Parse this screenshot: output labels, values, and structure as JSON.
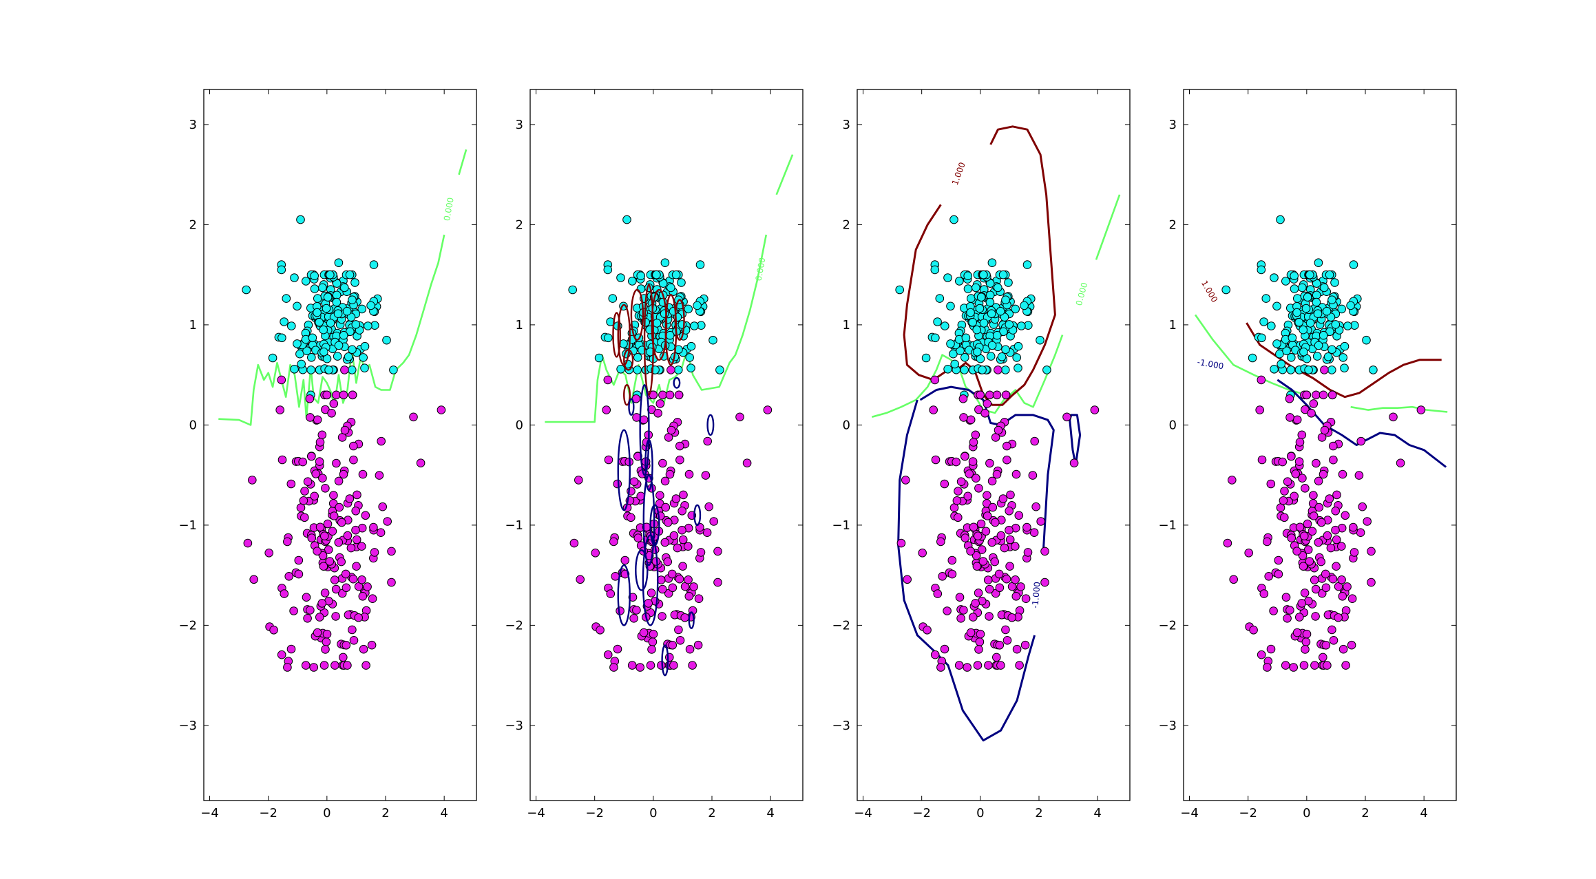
{
  "chart_data": {
    "type": "scatter",
    "panel_count": 4,
    "xlim": [
      -4.2,
      5.1
    ],
    "ylim": [
      -3.75,
      3.35
    ],
    "xticks": [
      -4,
      -2,
      0,
      2,
      4
    ],
    "yticks": [
      -3,
      -2,
      -1,
      0,
      1,
      2,
      3
    ],
    "xtick_labels": [
      "−4",
      "−2",
      "0",
      "2",
      "4"
    ],
    "ytick_labels": [
      "−3",
      "−2",
      "−1",
      "0",
      "1",
      "2",
      "3"
    ],
    "grid": false,
    "colors": {
      "class_pos": "#19f2f2",
      "class_neg": "#e619e6",
      "contour_pos": "#800000",
      "contour_zero": "#66ff66",
      "contour_neg": "#000080",
      "marker_edge": "#000000"
    },
    "point_counts": {
      "class_pos": 200,
      "class_neg": 200
    },
    "class_pos_distribution": {
      "center": [
        0.1,
        1.0
      ],
      "spread": [
        0.75,
        0.3
      ]
    },
    "class_neg_distribution": {
      "center": [
        0.1,
        -1.1
      ],
      "spread": [
        0.9,
        0.75
      ]
    },
    "class_pos_points": [
      [
        -0.9,
        2.05
      ],
      [
        -2.75,
        1.35
      ],
      [
        -1.55,
        1.6
      ],
      [
        -1.55,
        1.55
      ],
      [
        1.6,
        1.6
      ],
      [
        0.4,
        1.62
      ],
      [
        -0.55,
        0.3
      ]
    ],
    "class_neg_points": [
      [
        3.2,
        -0.38
      ],
      [
        3.9,
        0.15
      ],
      [
        2.95,
        0.08
      ],
      [
        -2.55,
        -0.55
      ],
      [
        -2.7,
        -1.18
      ],
      [
        -1.35,
        -2.42
      ],
      [
        0.55,
        -2.32
      ],
      [
        -0.45,
        -2.42
      ],
      [
        -1.55,
        0.45
      ],
      [
        -1.6,
        0.15
      ],
      [
        0.6,
        0.55
      ]
    ],
    "panels": [
      {
        "contour_levels": [
          0.0
        ],
        "contour_labels": [
          {
            "text": "0.000",
            "x": 4.25,
            "y": 2.15,
            "rotation": -80,
            "color": "contour_zero"
          }
        ],
        "zero_contour": [
          [
            -3.7,
            0.06
          ],
          [
            -3.0,
            0.05
          ],
          [
            -2.6,
            0.0
          ],
          [
            -2.5,
            0.35
          ],
          [
            -2.35,
            0.6
          ],
          [
            -2.15,
            0.45
          ],
          [
            -2.0,
            0.52
          ],
          [
            -1.85,
            0.38
          ],
          [
            -1.7,
            0.62
          ],
          [
            -1.55,
            0.45
          ],
          [
            -1.4,
            0.28
          ],
          [
            -1.25,
            0.6
          ],
          [
            -1.1,
            0.5
          ],
          [
            -0.95,
            0.18
          ],
          [
            -0.8,
            0.45
          ],
          [
            -0.7,
            0.07
          ],
          [
            -0.55,
            0.58
          ],
          [
            -0.45,
            0.27
          ],
          [
            -0.3,
            0.22
          ],
          [
            -0.15,
            0.48
          ],
          [
            0.0,
            0.42
          ],
          [
            0.15,
            0.32
          ],
          [
            0.25,
            0.18
          ],
          [
            0.4,
            0.5
          ],
          [
            0.55,
            0.22
          ],
          [
            0.7,
            0.35
          ],
          [
            0.85,
            0.75
          ],
          [
            1.0,
            0.42
          ],
          [
            1.15,
            0.68
          ],
          [
            1.3,
            0.55
          ],
          [
            1.45,
            0.6
          ],
          [
            1.65,
            0.38
          ],
          [
            1.85,
            0.35
          ],
          [
            2.15,
            0.35
          ],
          [
            2.35,
            0.55
          ],
          [
            2.6,
            0.62
          ],
          [
            2.8,
            0.7
          ],
          [
            3.05,
            0.9
          ],
          [
            3.3,
            1.15
          ],
          [
            3.55,
            1.4
          ],
          [
            3.8,
            1.62
          ],
          [
            4.0,
            1.9
          ]
        ],
        "zero_contour_upper": [
          [
            4.5,
            2.5
          ],
          [
            4.75,
            2.75
          ]
        ]
      },
      {
        "contour_levels": [
          -1.0,
          0.0,
          1.0
        ],
        "contour_labels": [
          {
            "text": "0.000",
            "x": 3.75,
            "y": 1.55,
            "rotation": -80,
            "color": "contour_zero"
          }
        ],
        "zero_contour": [
          [
            -3.7,
            0.03
          ],
          [
            -2.0,
            0.03
          ],
          [
            -1.9,
            0.45
          ],
          [
            -1.75,
            0.7
          ],
          [
            -1.6,
            0.55
          ],
          [
            -1.35,
            0.4
          ],
          [
            -1.15,
            0.55
          ],
          [
            -0.95,
            0.5
          ],
          [
            -0.75,
            0.22
          ],
          [
            -0.5,
            0.6
          ],
          [
            -0.25,
            0.3
          ],
          [
            0.0,
            0.22
          ],
          [
            0.2,
            0.4
          ],
          [
            0.35,
            0.2
          ],
          [
            0.55,
            0.45
          ],
          [
            0.75,
            0.48
          ],
          [
            0.95,
            0.55
          ],
          [
            1.15,
            0.75
          ],
          [
            1.35,
            0.5
          ],
          [
            1.65,
            0.35
          ],
          [
            2.25,
            0.38
          ],
          [
            2.6,
            0.62
          ],
          [
            2.8,
            0.7
          ],
          [
            3.05,
            0.9
          ],
          [
            3.3,
            1.15
          ],
          [
            3.55,
            1.45
          ],
          [
            3.85,
            1.9
          ]
        ],
        "zero_contour_upper": [
          [
            4.2,
            2.3
          ],
          [
            4.75,
            2.7
          ]
        ],
        "pos_ellipses": [
          [
            -1.0,
            0.9,
            0.2,
            0.3
          ],
          [
            -0.55,
            1.1,
            0.2,
            0.25
          ],
          [
            -0.15,
            0.85,
            0.15,
            0.55
          ],
          [
            0.2,
            1.0,
            0.25,
            0.35
          ],
          [
            0.6,
            0.95,
            0.18,
            0.35
          ],
          [
            0.9,
            1.05,
            0.15,
            0.2
          ],
          [
            -0.85,
            0.65,
            0.15,
            0.1
          ],
          [
            -0.9,
            0.3,
            0.1,
            0.1
          ],
          [
            -1.25,
            0.9,
            0.12,
            0.22
          ]
        ],
        "neg_ellipses": [
          [
            -0.3,
            -0.05,
            0.15,
            0.45
          ],
          [
            -1.0,
            -0.45,
            0.2,
            0.4
          ],
          [
            -0.15,
            -0.4,
            0.12,
            0.25
          ],
          [
            -0.15,
            -0.95,
            0.18,
            0.45
          ],
          [
            0.05,
            -1.0,
            0.15,
            0.2
          ],
          [
            1.95,
            0.0,
            0.1,
            0.1
          ],
          [
            1.5,
            -0.9,
            0.1,
            0.1
          ],
          [
            -0.4,
            -1.45,
            0.2,
            0.2
          ],
          [
            -0.1,
            -1.55,
            0.25,
            0.45
          ],
          [
            -1.0,
            -1.7,
            0.2,
            0.3
          ],
          [
            0.4,
            -2.35,
            0.1,
            0.15
          ],
          [
            1.3,
            -1.95,
            0.08,
            0.08
          ],
          [
            -0.75,
            0.18,
            0.08,
            0.08
          ],
          [
            0.8,
            0.42,
            0.1,
            0.05
          ]
        ]
      },
      {
        "contour_levels": [
          -1.0,
          0.0,
          1.0
        ],
        "contour_labels": [
          {
            "text": "1.000",
            "x": -0.65,
            "y": 2.5,
            "rotation": -70,
            "color": "contour_pos"
          },
          {
            "text": "0.000",
            "x": 3.55,
            "y": 1.3,
            "rotation": -75,
            "color": "contour_zero"
          },
          {
            "text": "-1.000",
            "x": 2.0,
            "y": -1.7,
            "rotation": -85,
            "color": "contour_neg"
          }
        ],
        "pos_contour": [
          [
            -1.35,
            2.2
          ],
          [
            -1.8,
            2.0
          ],
          [
            -2.2,
            1.75
          ],
          [
            -2.5,
            1.2
          ],
          [
            -2.6,
            0.9
          ],
          [
            -2.5,
            0.6
          ],
          [
            -2.1,
            0.5
          ],
          [
            -1.6,
            0.45
          ],
          [
            -1.1,
            0.55
          ],
          [
            -0.8,
            0.55
          ],
          [
            -0.5,
            0.62
          ],
          [
            -0.2,
            0.55
          ],
          [
            0.1,
            0.3
          ],
          [
            0.4,
            0.2
          ],
          [
            0.75,
            0.2
          ],
          [
            1.1,
            0.3
          ],
          [
            1.5,
            0.4
          ],
          [
            1.8,
            0.55
          ],
          [
            2.2,
            0.8
          ],
          [
            2.55,
            1.1
          ],
          [
            2.4,
            1.7
          ],
          [
            2.25,
            2.3
          ],
          [
            2.05,
            2.7
          ],
          [
            1.6,
            2.95
          ],
          [
            1.1,
            2.98
          ],
          [
            0.6,
            2.95
          ],
          [
            0.35,
            2.8
          ]
        ],
        "zero_contour": [
          [
            -3.7,
            0.08
          ],
          [
            -3.2,
            0.12
          ],
          [
            -2.7,
            0.18
          ],
          [
            -2.2,
            0.25
          ],
          [
            -1.8,
            0.38
          ],
          [
            -1.5,
            0.55
          ],
          [
            -1.3,
            0.7
          ],
          [
            -1.0,
            0.65
          ],
          [
            -0.7,
            0.55
          ],
          [
            -0.5,
            0.38
          ],
          [
            -0.2,
            0.3
          ],
          [
            0.1,
            0.15
          ],
          [
            0.5,
            0.12
          ],
          [
            0.8,
            0.25
          ],
          [
            1.2,
            0.35
          ],
          [
            1.5,
            0.22
          ],
          [
            1.8,
            0.18
          ],
          [
            2.2,
            0.45
          ],
          [
            2.55,
            0.7
          ],
          [
            2.8,
            0.9
          ]
        ],
        "zero_contour_upper": [
          [
            3.95,
            1.65
          ],
          [
            4.75,
            2.3
          ]
        ],
        "neg_contour": [
          [
            -2.15,
            0.25
          ],
          [
            -2.5,
            -0.1
          ],
          [
            -2.75,
            -0.55
          ],
          [
            -2.8,
            -1.2
          ],
          [
            -2.6,
            -1.75
          ],
          [
            -2.15,
            -2.1
          ],
          [
            -1.6,
            -2.25
          ],
          [
            -1.1,
            -2.4
          ],
          [
            -0.6,
            -2.85
          ],
          [
            0.1,
            -3.15
          ],
          [
            0.7,
            -3.05
          ],
          [
            1.25,
            -2.75
          ],
          [
            1.65,
            -2.3
          ],
          [
            1.85,
            -2.1
          ]
        ],
        "neg_contour_b": [
          [
            2.15,
            -1.25
          ],
          [
            2.3,
            -0.5
          ],
          [
            2.5,
            -0.05
          ],
          [
            2.3,
            0.05
          ],
          [
            1.8,
            0.1
          ],
          [
            1.2,
            0.1
          ],
          [
            0.7,
            0.0
          ],
          [
            0.35,
            0.02
          ],
          [
            0.1,
            0.25
          ],
          [
            -0.4,
            0.35
          ],
          [
            -1.0,
            0.38
          ],
          [
            -1.5,
            0.35
          ],
          [
            -2.05,
            0.25
          ]
        ],
        "neg_island": [
          [
            3.05,
            0.05
          ],
          [
            3.15,
            -0.25
          ],
          [
            3.25,
            -0.4
          ],
          [
            3.4,
            -0.1
          ],
          [
            3.3,
            0.1
          ],
          [
            3.1,
            0.1
          ]
        ]
      },
      {
        "contour_levels": [
          -1.0,
          0.0,
          1.0
        ],
        "contour_labels": [
          {
            "text": "1.000",
            "x": -3.4,
            "y": 1.32,
            "rotation": 60,
            "color": "contour_pos"
          },
          {
            "text": "-1.000",
            "x": -3.3,
            "y": 0.58,
            "rotation": 10,
            "color": "contour_neg"
          }
        ],
        "pos_contour": [
          [
            -2.05,
            1.02
          ],
          [
            -1.6,
            0.8
          ],
          [
            -1.0,
            0.68
          ],
          [
            -0.5,
            0.58
          ],
          [
            0.2,
            0.47
          ],
          [
            0.8,
            0.35
          ],
          [
            1.3,
            0.28
          ],
          [
            1.8,
            0.32
          ],
          [
            2.3,
            0.42
          ],
          [
            2.8,
            0.52
          ],
          [
            3.3,
            0.6
          ],
          [
            3.85,
            0.65
          ],
          [
            4.6,
            0.65
          ]
        ],
        "zero_contour": [
          [
            -3.8,
            1.1
          ],
          [
            -3.2,
            0.85
          ],
          [
            -2.5,
            0.6
          ],
          [
            -1.8,
            0.5
          ],
          [
            -1.2,
            0.42
          ],
          [
            -0.6,
            0.35
          ],
          [
            0.0,
            0.3
          ]
        ],
        "zero_contour_right": [
          [
            1.5,
            0.18
          ],
          [
            2.1,
            0.15
          ],
          [
            2.6,
            0.17
          ],
          [
            3.1,
            0.17
          ],
          [
            3.6,
            0.18
          ],
          [
            4.1,
            0.15
          ],
          [
            4.8,
            0.13
          ]
        ],
        "neg_contour": [
          [
            -1.0,
            0.45
          ],
          [
            -0.5,
            0.35
          ],
          [
            0.0,
            0.2
          ],
          [
            0.6,
            0.0
          ],
          [
            1.2,
            -0.1
          ],
          [
            1.7,
            -0.2
          ],
          [
            2.5,
            -0.08
          ],
          [
            3.0,
            -0.1
          ],
          [
            3.5,
            -0.2
          ],
          [
            4.0,
            -0.25
          ],
          [
            4.75,
            -0.42
          ]
        ]
      }
    ]
  }
}
